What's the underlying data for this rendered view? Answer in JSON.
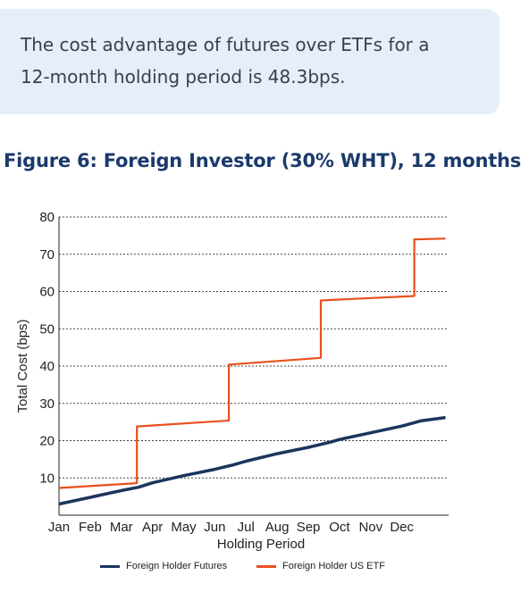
{
  "callout": {
    "line1": "The cost advantage of futures over ETFs for a",
    "line2": "12-month holding period is 48.3bps."
  },
  "figure": {
    "title": "Figure 6: Foreign Investor (30% WHT), 12 months"
  },
  "colors": {
    "futures": "#1c355e",
    "etf": "#e8501e",
    "callout_bg": "#e6eff9",
    "title": "#1b3a6b"
  },
  "chart_data": {
    "type": "line",
    "title": "",
    "xlabel": "Holding Period",
    "ylabel": "Total Cost (bps)",
    "ylim": [
      0,
      80
    ],
    "yticks": [
      10,
      20,
      30,
      40,
      50,
      60,
      70,
      80
    ],
    "xlim": [
      0,
      12.5
    ],
    "categories": [
      "Jan",
      "Feb",
      "Mar",
      "Apr",
      "May",
      "Jun",
      "Jul",
      "Aug",
      "Sep",
      "Oct",
      "Nov",
      "Dec"
    ],
    "grid": "horizontal-dashed",
    "legend_position": "bottom",
    "series": [
      {
        "name": "Foreign Holder Futures",
        "color": "#1c355e",
        "x": [
          0,
          1,
          2,
          2.55,
          3,
          4,
          5,
          5.6,
          6,
          7,
          8,
          8.7,
          9,
          10,
          11,
          11.6,
          12.4
        ],
        "y": [
          3.0,
          4.8,
          6.6,
          7.5,
          8.7,
          10.6,
          12.3,
          13.5,
          14.5,
          16.5,
          18.2,
          19.6,
          20.3,
          22.1,
          23.9,
          25.3,
          26.2
        ]
      },
      {
        "name": "Foreign Holder US ETF",
        "color": "#e8501e",
        "x": [
          0,
          2.5,
          2.5,
          5.45,
          5.45,
          8.4,
          8.4,
          11.4,
          11.4,
          12.4
        ],
        "y": [
          7.3,
          8.6,
          23.8,
          25.4,
          40.4,
          42.2,
          57.6,
          58.8,
          74.0,
          74.2
        ]
      }
    ]
  }
}
